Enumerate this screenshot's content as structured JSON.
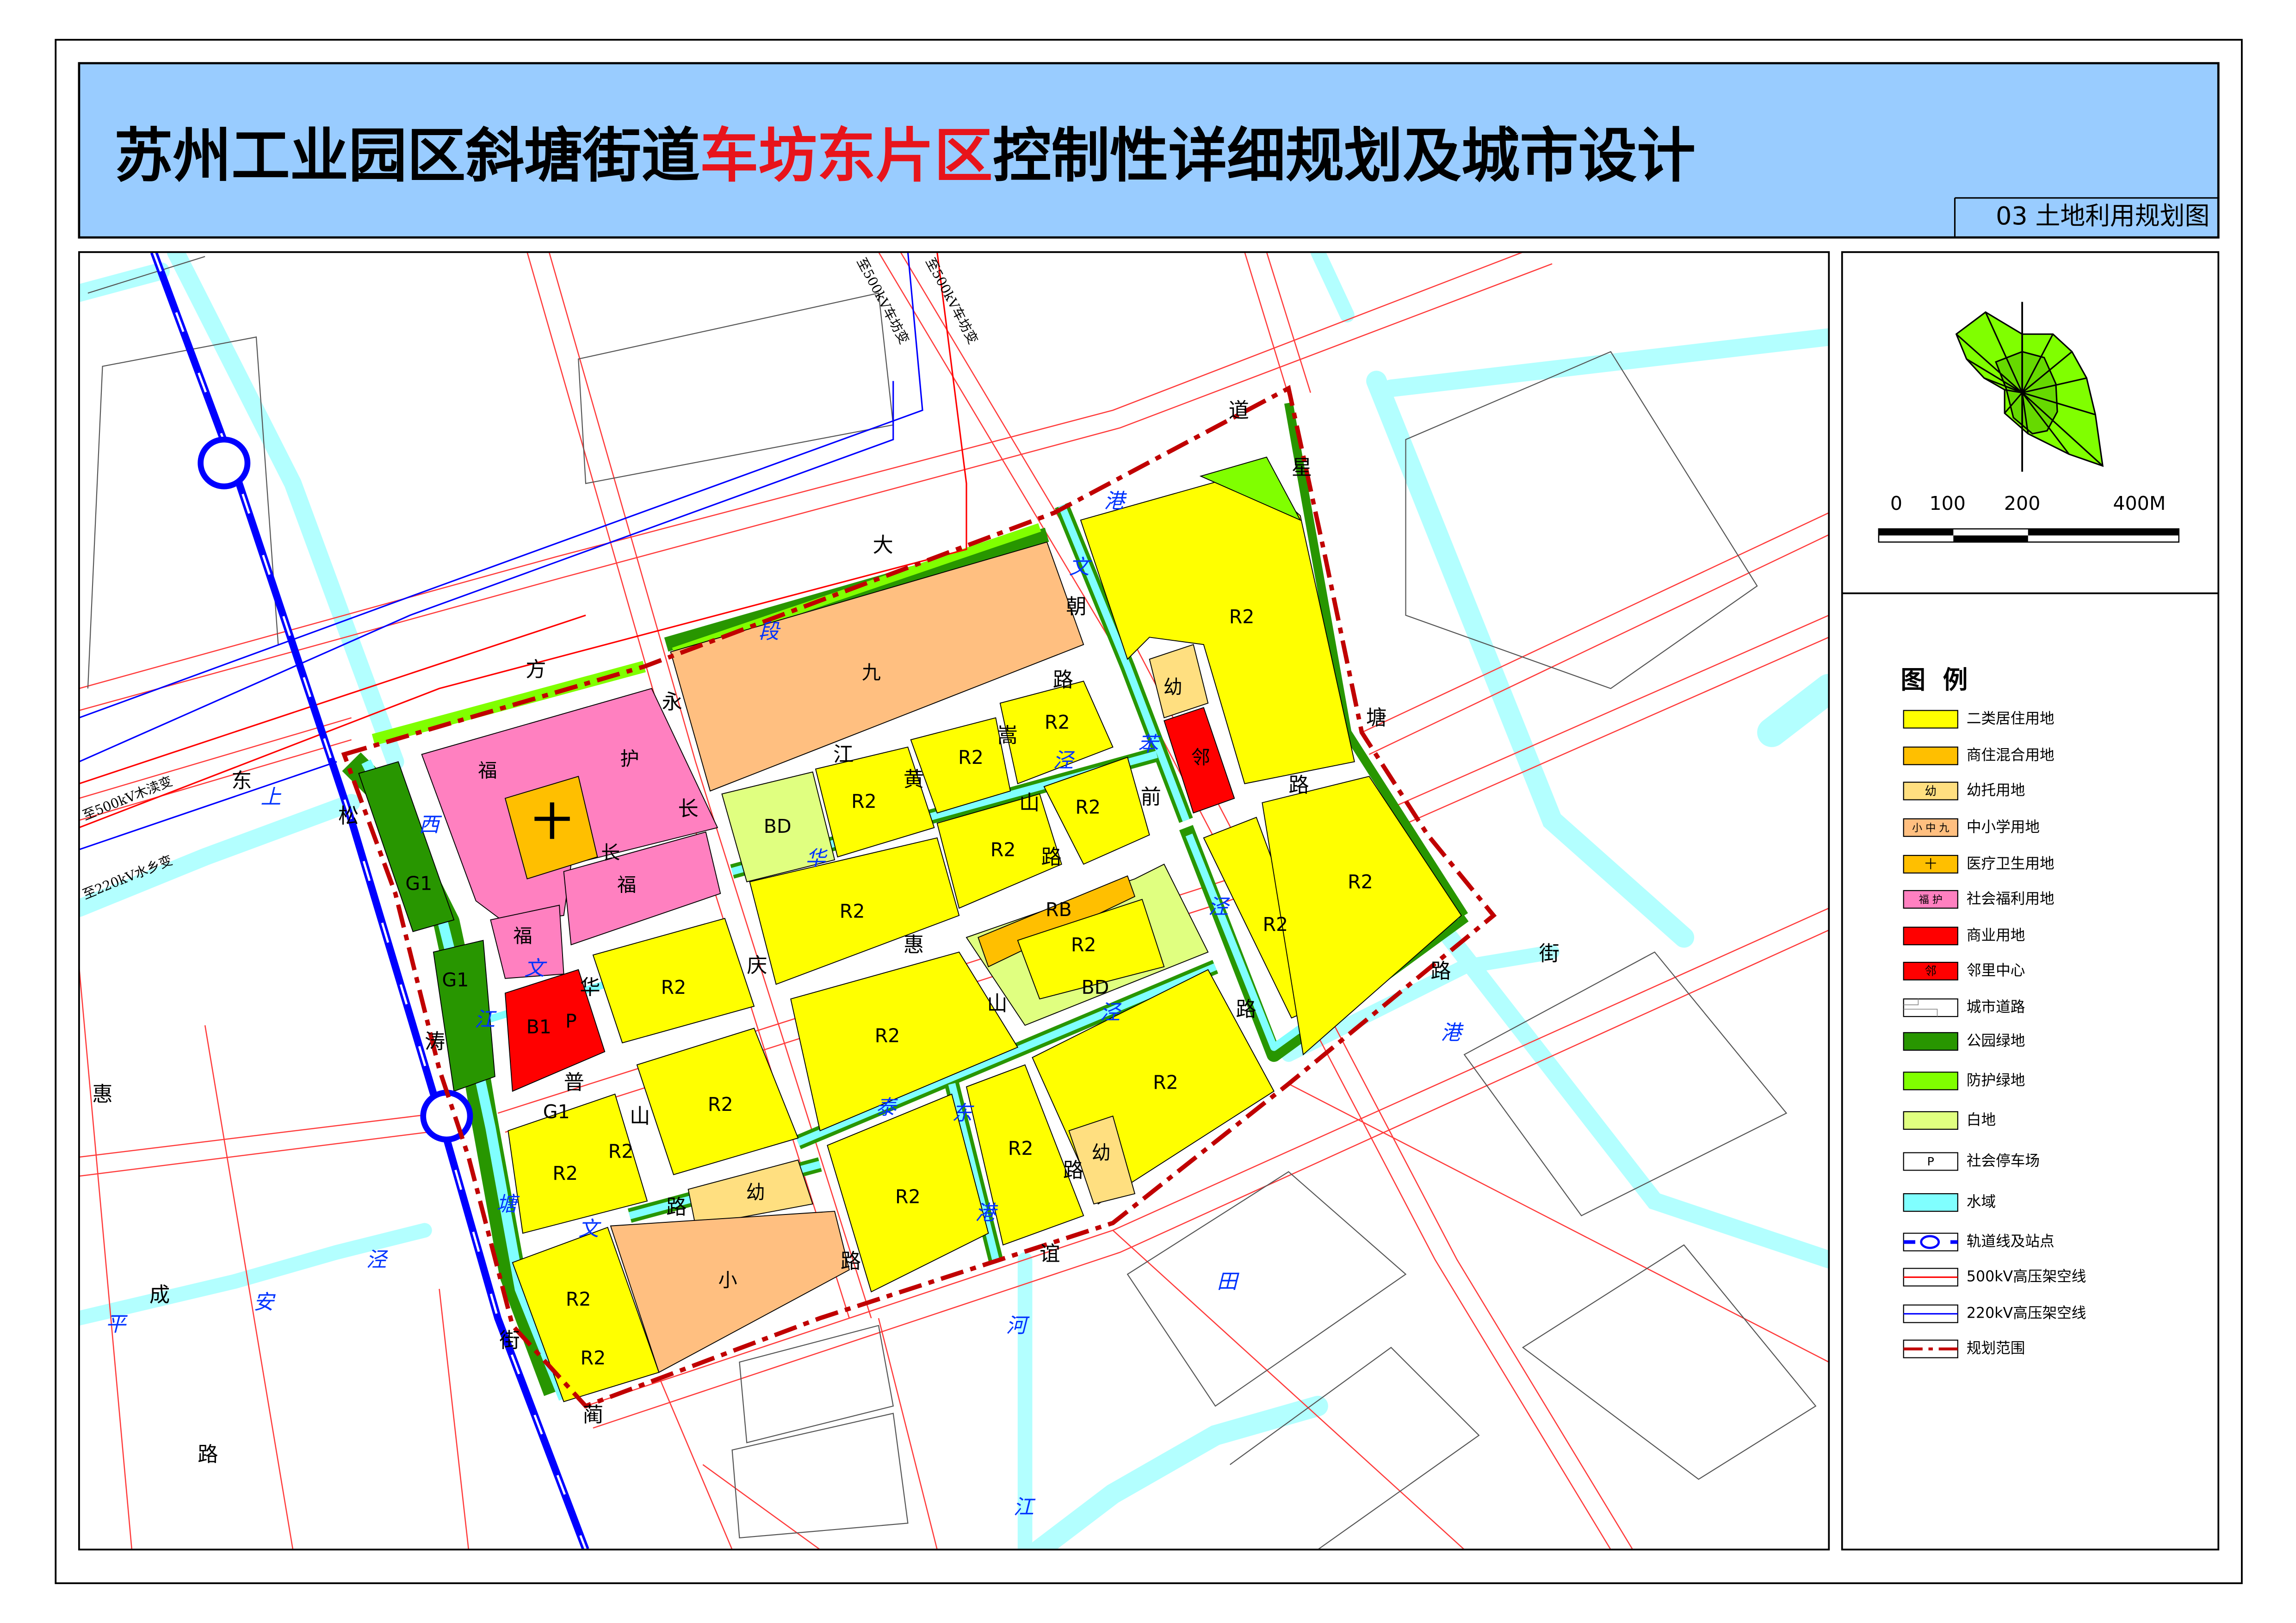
{
  "header": {
    "title_prefix": "苏州工业园区斜塘街道",
    "title_highlight": "车坊东片区",
    "title_suffix": "控制性详细规划及城市设计",
    "subtitle": "03 土地利用规划图",
    "band_color": "#99ccff",
    "highlight_color": "#e8141b"
  },
  "scale_bar": {
    "labels": [
      "0",
      "100",
      "200",
      "400M"
    ]
  },
  "north_arrow": {
    "icon": "wind-rose-north-arrow-icon"
  },
  "legend": {
    "title": "图  例",
    "items": [
      {
        "label": "二类居住用地",
        "color": "#ffff00",
        "symbol": ""
      },
      {
        "label": "商住混合用地",
        "color": "#ffbf00",
        "symbol": ""
      },
      {
        "label": "幼托用地",
        "color": "#ffdf80",
        "symbol": "幼"
      },
      {
        "label": "中小学用地",
        "color": "#ffbf80",
        "symbol": "小 中 九"
      },
      {
        "label": "医疗卫生用地",
        "color": "#ffbf00",
        "symbol": "十"
      },
      {
        "label": "社会福利用地",
        "color": "#ff80c0",
        "symbol": "福 护"
      },
      {
        "label": "商业用地",
        "color": "#ff0000",
        "symbol": ""
      },
      {
        "label": "邻里中心",
        "color": "#ff0000",
        "symbol": "邻"
      },
      {
        "label": "城市道路",
        "color": "#ffffff",
        "symbol": ""
      },
      {
        "label": "公园绿地",
        "color": "#289600",
        "symbol": ""
      },
      {
        "label": "防护绿地",
        "color": "#80ff00",
        "symbol": ""
      },
      {
        "label": "白地",
        "color": "#e0ff80",
        "symbol": ""
      },
      {
        "label": "社会停车场",
        "color": "#ffffff",
        "symbol": "P"
      },
      {
        "label": "水域",
        "color": "#80ffff",
        "symbol": ""
      },
      {
        "label": "轨道线及站点",
        "color": "#0000ff",
        "symbol": ""
      },
      {
        "label": "500kV高压架空线",
        "color": "#ff0000",
        "symbol": ""
      },
      {
        "label": "220kV高压架空线",
        "color": "#0000ff",
        "symbol": ""
      },
      {
        "label": "规划范围",
        "color": "#c00000",
        "symbol": ""
      }
    ]
  },
  "map": {
    "parcel_labels": [
      "九",
      "福",
      "护",
      "十",
      "长",
      "福",
      "福",
      "G1",
      "G1",
      "B1",
      "P",
      "BD",
      "R2",
      "R2",
      "R2",
      "R2",
      "R2",
      "R2",
      "邻",
      "幼",
      "R2",
      "R2",
      "R2",
      "RB",
      "R2",
      "BD",
      "R2",
      "R2",
      "R2",
      "R2",
      "幼",
      "R2",
      "R2",
      "R2",
      "R2",
      "R2",
      "幼",
      "小",
      "R2",
      "G1"
    ],
    "road_labels": [
      "大",
      "道",
      "星",
      "朝",
      "路",
      "方",
      "永",
      "东",
      "松",
      "江",
      "黄",
      "嵩",
      "山",
      "路",
      "前",
      "塘",
      "路",
      "惠",
      "庆",
      "山",
      "华",
      "路",
      "涛",
      "普",
      "山",
      "路",
      "街",
      "路",
      "惠",
      "路",
      "谊",
      "路",
      "成",
      "街",
      "蔺",
      "路",
      "长"
    ],
    "water_labels": [
      "港",
      "文",
      "段",
      "上",
      "西",
      "泾",
      "苯",
      "文",
      "江",
      "泾",
      "泾",
      "港",
      "泰",
      "东",
      "港",
      "塘",
      "文",
      "泾",
      "安",
      "平",
      "田",
      "河",
      "江",
      "华"
    ],
    "annotations": [
      "至500kV车坊变",
      "至500kV车坊变",
      "至500kV木渎变",
      "至220kV水乡变"
    ]
  }
}
